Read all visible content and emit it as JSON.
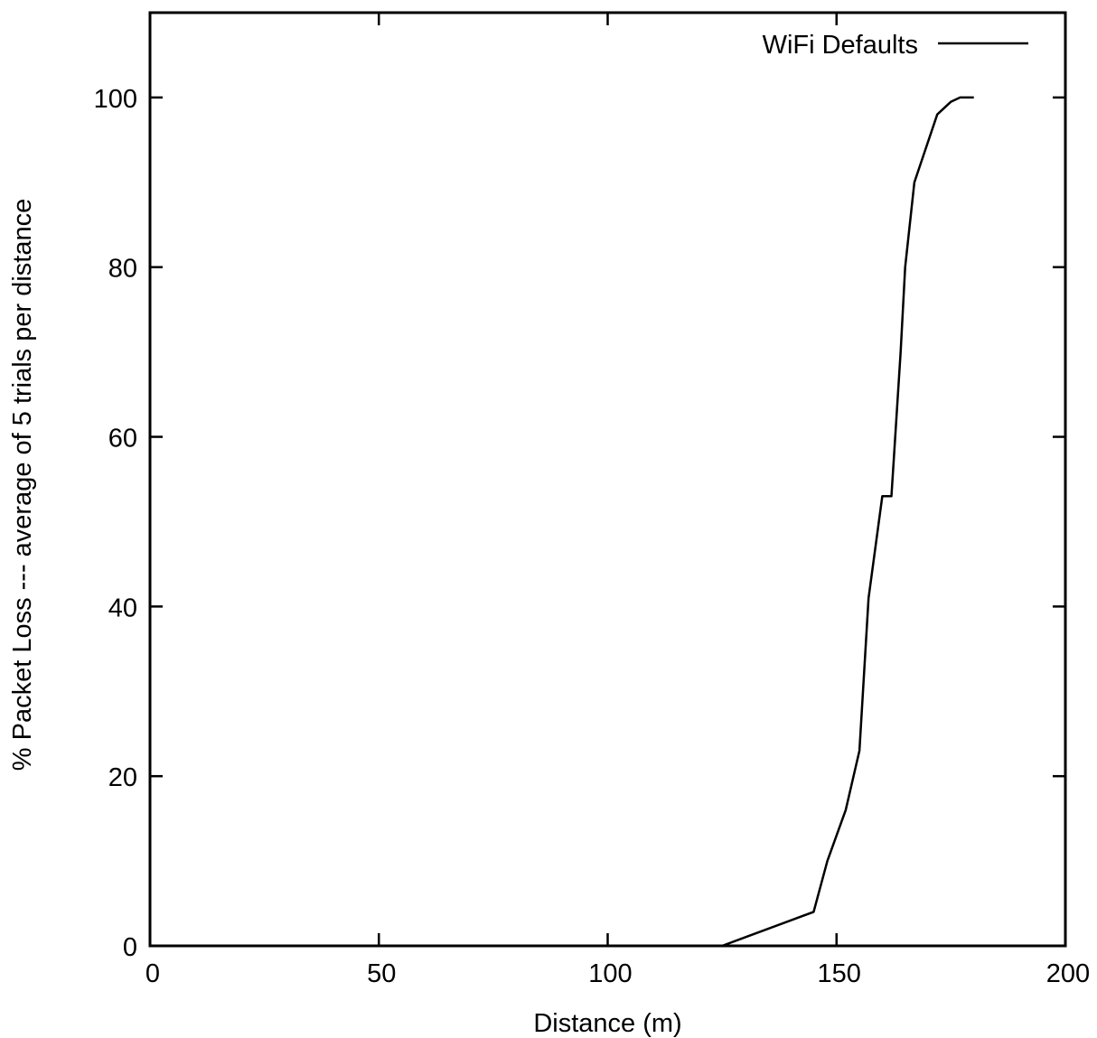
{
  "chart_data": {
    "type": "line",
    "title": "",
    "xlabel": "Distance (m)",
    "ylabel": "% Packet Loss --- average of 5 trials per distance",
    "xlim": [
      0,
      200
    ],
    "ylim": [
      0,
      110
    ],
    "xticks": [
      0,
      50,
      100,
      150,
      200
    ],
    "yticks": [
      0,
      20,
      40,
      60,
      80,
      100
    ],
    "grid": false,
    "legend_position": "top-right",
    "series": [
      {
        "name": "WiFi Defaults",
        "color": "#000000",
        "x": [
          125,
          130,
          145,
          148,
          152,
          155,
          157,
          160,
          162,
          164,
          165,
          167,
          172,
          175,
          177,
          178,
          180
        ],
        "y": [
          0,
          1,
          4,
          10,
          16,
          23,
          41,
          53,
          53,
          70,
          80,
          90,
          98,
          99.5,
          100,
          100,
          100
        ]
      }
    ]
  }
}
